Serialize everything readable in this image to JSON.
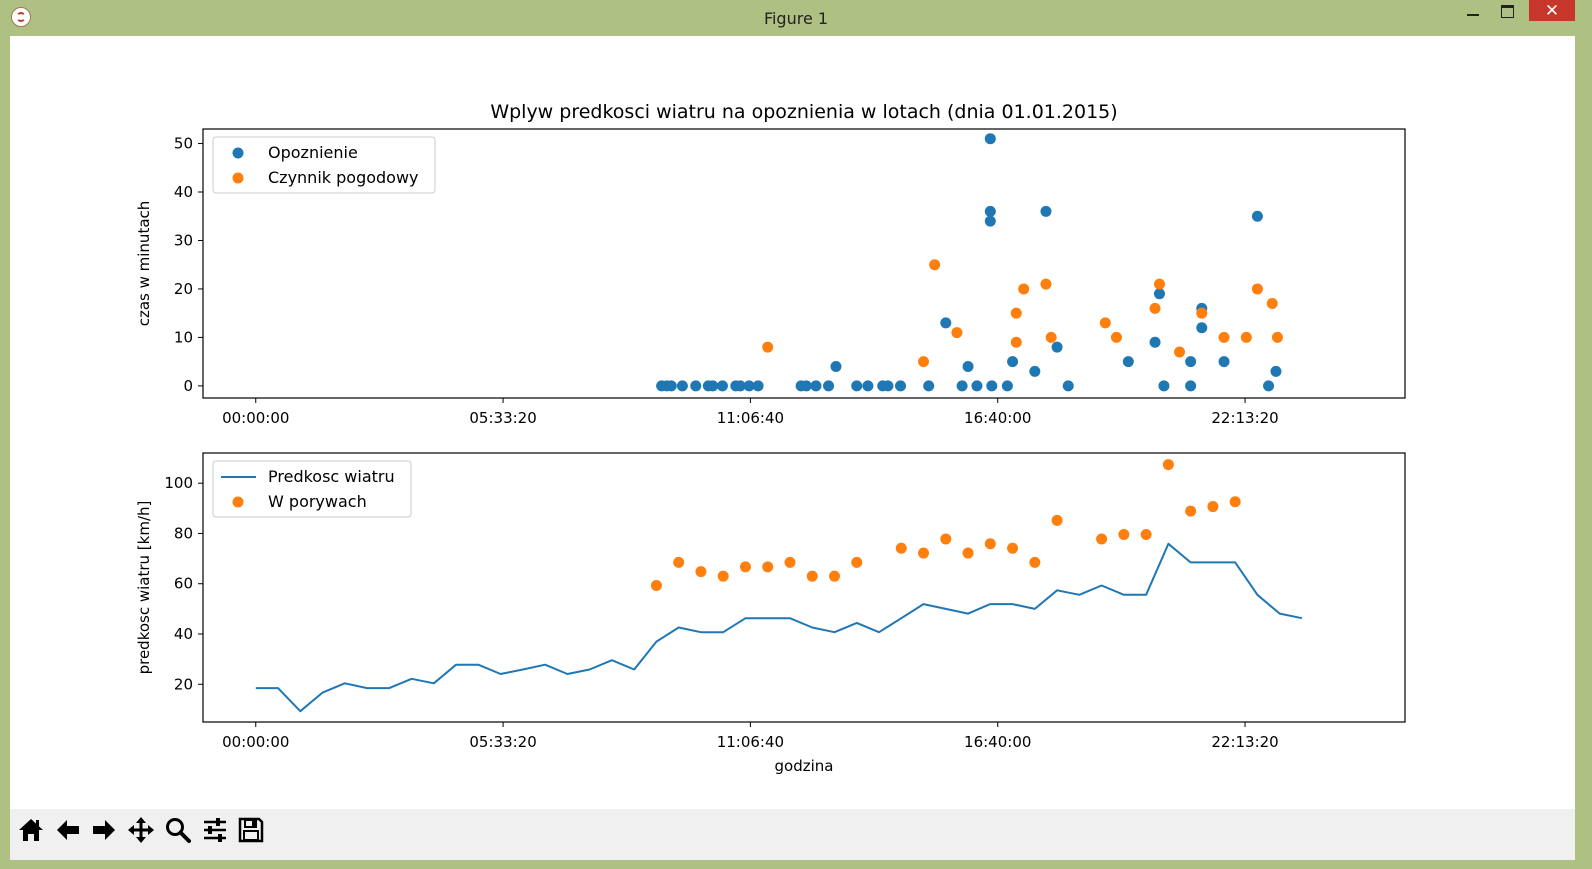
{
  "window": {
    "title": "Figure 1"
  },
  "toolbar": {
    "buttons": [
      {
        "name": "home-button",
        "icon": "home-icon"
      },
      {
        "name": "back-button",
        "icon": "arrow-left-icon"
      },
      {
        "name": "forward-button",
        "icon": "arrow-right-icon"
      },
      {
        "name": "pan-button",
        "icon": "move-icon"
      },
      {
        "name": "zoom-button",
        "icon": "magnifier-icon"
      },
      {
        "name": "subplots-button",
        "icon": "sliders-icon"
      },
      {
        "name": "save-button",
        "icon": "floppy-icon"
      }
    ]
  },
  "colors": {
    "blue": "#1f77b4",
    "orange": "#ff7f0e",
    "window_frame": "#aec183",
    "close": "#c7352b"
  },
  "chart_data": [
    {
      "type": "scatter",
      "title": "Wplyw predkosci wiatru na opoznienia w lotach (dnia 01.01.2015)",
      "xlabel": "",
      "ylabel": "czas w minutach",
      "xlim": [
        "-01:11:06",
        "25:48:54"
      ],
      "ylim": [
        -2.5,
        53
      ],
      "xticks": [
        "00:00:00",
        "05:33:20",
        "11:06:40",
        "16:40:00",
        "22:13:20"
      ],
      "yticks": [
        0,
        10,
        20,
        30,
        40,
        50
      ],
      "legend": {
        "position": "top-left"
      },
      "grid": false,
      "series": [
        {
          "name": "Opoznienie",
          "color": "#1f77b4",
          "kind": "scatter",
          "points": [
            [
              "09:07:00",
              0
            ],
            [
              "09:14:00",
              0
            ],
            [
              "09:20:00",
              0
            ],
            [
              "09:35:00",
              0
            ],
            [
              "09:53:00",
              0
            ],
            [
              "10:10:00",
              0
            ],
            [
              "10:16:00",
              0
            ],
            [
              "10:29:00",
              0
            ],
            [
              "10:47:00",
              0
            ],
            [
              "10:53:00",
              0
            ],
            [
              "11:05:00",
              0
            ],
            [
              "11:17:00",
              0
            ],
            [
              "12:15:00",
              0
            ],
            [
              "12:22:00",
              0
            ],
            [
              "12:35:00",
              0
            ],
            [
              "12:52:00",
              0
            ],
            [
              "13:02:00",
              4
            ],
            [
              "13:30:00",
              0
            ],
            [
              "13:45:00",
              0
            ],
            [
              "14:05:00",
              0
            ],
            [
              "14:12:00",
              0
            ],
            [
              "14:29:00",
              0
            ],
            [
              "15:07:00",
              0
            ],
            [
              "15:30:00",
              13
            ],
            [
              "15:52:00",
              0
            ],
            [
              "16:00:00",
              4
            ],
            [
              "16:12:00",
              0
            ],
            [
              "16:30:00",
              51
            ],
            [
              "16:30:00",
              36
            ],
            [
              "16:30:00",
              34
            ],
            [
              "16:32:00",
              0
            ],
            [
              "16:53:00",
              0
            ],
            [
              "17:00:00",
              5
            ],
            [
              "17:30:00",
              3
            ],
            [
              "17:45:00",
              36
            ],
            [
              "18:00:00",
              8
            ],
            [
              "18:15:00",
              0
            ],
            [
              "19:36:00",
              5
            ],
            [
              "20:12:00",
              9
            ],
            [
              "20:18:00",
              19
            ],
            [
              "20:24:00",
              0
            ],
            [
              "21:00:00",
              0
            ],
            [
              "21:00:00",
              5
            ],
            [
              "21:15:00",
              16
            ],
            [
              "21:15:00",
              12
            ],
            [
              "21:45:00",
              5
            ],
            [
              "22:30:00",
              35
            ],
            [
              "22:45:00",
              0
            ],
            [
              "22:55:00",
              3
            ]
          ]
        },
        {
          "name": "Czynnik pogodowy",
          "color": "#ff7f0e",
          "kind": "scatter",
          "points": [
            [
              "11:30:00",
              8
            ],
            [
              "15:00:00",
              5
            ],
            [
              "15:15:00",
              25
            ],
            [
              "15:45:00",
              11
            ],
            [
              "17:05:00",
              15
            ],
            [
              "17:05:00",
              9
            ],
            [
              "17:15:00",
              20
            ],
            [
              "17:45:00",
              21
            ],
            [
              "17:52:00",
              10
            ],
            [
              "19:05:00",
              13
            ],
            [
              "19:20:00",
              10
            ],
            [
              "20:12:00",
              16
            ],
            [
              "20:18:00",
              21
            ],
            [
              "20:45:00",
              7
            ],
            [
              "21:15:00",
              15
            ],
            [
              "21:45:00",
              10
            ],
            [
              "22:15:00",
              10
            ],
            [
              "22:30:00",
              20
            ],
            [
              "22:50:00",
              17
            ],
            [
              "22:57:00",
              10
            ]
          ]
        }
      ]
    },
    {
      "type": "line",
      "title": "",
      "xlabel": "godzina",
      "ylabel": "predkosc wiatru [km/h]",
      "xlim": [
        "-01:11:06",
        "25:48:54"
      ],
      "ylim": [
        5,
        112
      ],
      "xticks": [
        "00:00:00",
        "05:33:20",
        "11:06:40",
        "16:40:00",
        "22:13:20"
      ],
      "yticks": [
        20,
        40,
        60,
        80,
        100
      ],
      "legend": {
        "position": "top-left"
      },
      "grid": false,
      "series": [
        {
          "name": "Predkosc wiatru",
          "color": "#1f77b4",
          "kind": "line",
          "points": [
            [
              "00:00:00",
              18.5
            ],
            [
              "00:30:00",
              18.5
            ],
            [
              "01:00:00",
              9.3
            ],
            [
              "01:30:00",
              16.7
            ],
            [
              "02:00:00",
              20.4
            ],
            [
              "02:30:00",
              18.5
            ],
            [
              "03:00:00",
              18.5
            ],
            [
              "03:30:00",
              22.2
            ],
            [
              "04:00:00",
              20.4
            ],
            [
              "04:30:00",
              27.8
            ],
            [
              "05:00:00",
              27.8
            ],
            [
              "05:30:00",
              24.1
            ],
            [
              "06:00:00",
              25.9
            ],
            [
              "06:30:00",
              27.8
            ],
            [
              "07:00:00",
              24.1
            ],
            [
              "07:30:00",
              25.9
            ],
            [
              "08:00:00",
              29.6
            ],
            [
              "08:30:00",
              25.9
            ],
            [
              "09:00:00",
              37.0
            ],
            [
              "09:30:00",
              42.6
            ],
            [
              "10:00:00",
              40.7
            ],
            [
              "10:30:00",
              40.7
            ],
            [
              "11:00:00",
              46.3
            ],
            [
              "11:30:00",
              46.3
            ],
            [
              "12:00:00",
              46.3
            ],
            [
              "12:30:00",
              42.6
            ],
            [
              "13:00:00",
              40.7
            ],
            [
              "13:30:00",
              44.4
            ],
            [
              "14:00:00",
              40.7
            ],
            [
              "14:30:00",
              46.3
            ],
            [
              "15:00:00",
              51.9
            ],
            [
              "15:30:00",
              50.0
            ],
            [
              "16:00:00",
              48.1
            ],
            [
              "16:30:00",
              51.9
            ],
            [
              "17:00:00",
              51.9
            ],
            [
              "17:30:00",
              50.0
            ],
            [
              "18:00:00",
              57.4
            ],
            [
              "18:30:00",
              55.6
            ],
            [
              "19:00:00",
              59.3
            ],
            [
              "19:30:00",
              55.6
            ],
            [
              "20:00:00",
              55.6
            ],
            [
              "20:30:00",
              75.9
            ],
            [
              "21:00:00",
              68.5
            ],
            [
              "21:30:00",
              68.5
            ],
            [
              "22:00:00",
              68.5
            ],
            [
              "22:30:00",
              55.6
            ],
            [
              "23:00:00",
              48.1
            ],
            [
              "23:30:00",
              46.3
            ]
          ]
        },
        {
          "name": "W porywach",
          "color": "#ff7f0e",
          "kind": "scatter",
          "points": [
            [
              "09:00:00",
              59.3
            ],
            [
              "09:30:00",
              68.5
            ],
            [
              "10:00:00",
              64.8
            ],
            [
              "10:30:00",
              63.0
            ],
            [
              "11:00:00",
              66.7
            ],
            [
              "11:30:00",
              66.7
            ],
            [
              "12:00:00",
              68.5
            ],
            [
              "12:30:00",
              63.0
            ],
            [
              "13:00:00",
              63.0
            ],
            [
              "13:30:00",
              68.5
            ],
            [
              "14:30:00",
              74.1
            ],
            [
              "15:00:00",
              72.2
            ],
            [
              "15:30:00",
              77.8
            ],
            [
              "16:00:00",
              72.2
            ],
            [
              "16:30:00",
              75.9
            ],
            [
              "17:00:00",
              74.1
            ],
            [
              "17:30:00",
              68.5
            ],
            [
              "18:00:00",
              85.2
            ],
            [
              "19:00:00",
              77.8
            ],
            [
              "19:30:00",
              79.6
            ],
            [
              "20:00:00",
              79.6
            ],
            [
              "20:30:00",
              107.4
            ],
            [
              "21:00:00",
              88.9
            ],
            [
              "21:30:00",
              90.7
            ],
            [
              "22:00:00",
              92.6
            ]
          ]
        }
      ]
    }
  ]
}
